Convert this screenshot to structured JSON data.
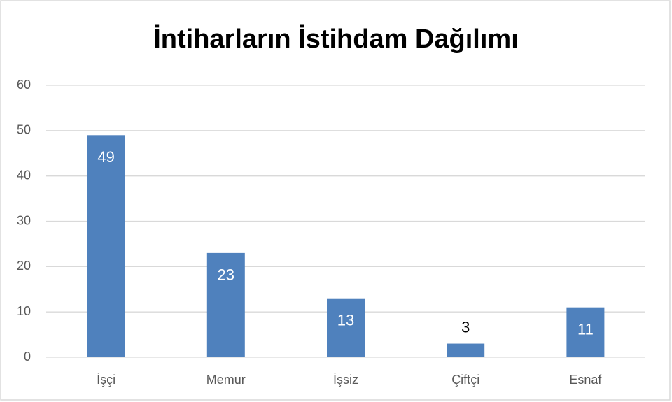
{
  "chart_data": {
    "type": "bar",
    "title": "İntiharların İstihdam Dağılımı",
    "categories": [
      "İşçi",
      "Memur",
      "İşsiz",
      "Çiftçi",
      "Esnaf"
    ],
    "values": [
      49,
      23,
      13,
      3,
      11
    ],
    "color": "#4f81bd",
    "ylim": [
      0,
      60
    ],
    "yticks": [
      0,
      10,
      20,
      30,
      40,
      50,
      60
    ],
    "grid": true
  }
}
